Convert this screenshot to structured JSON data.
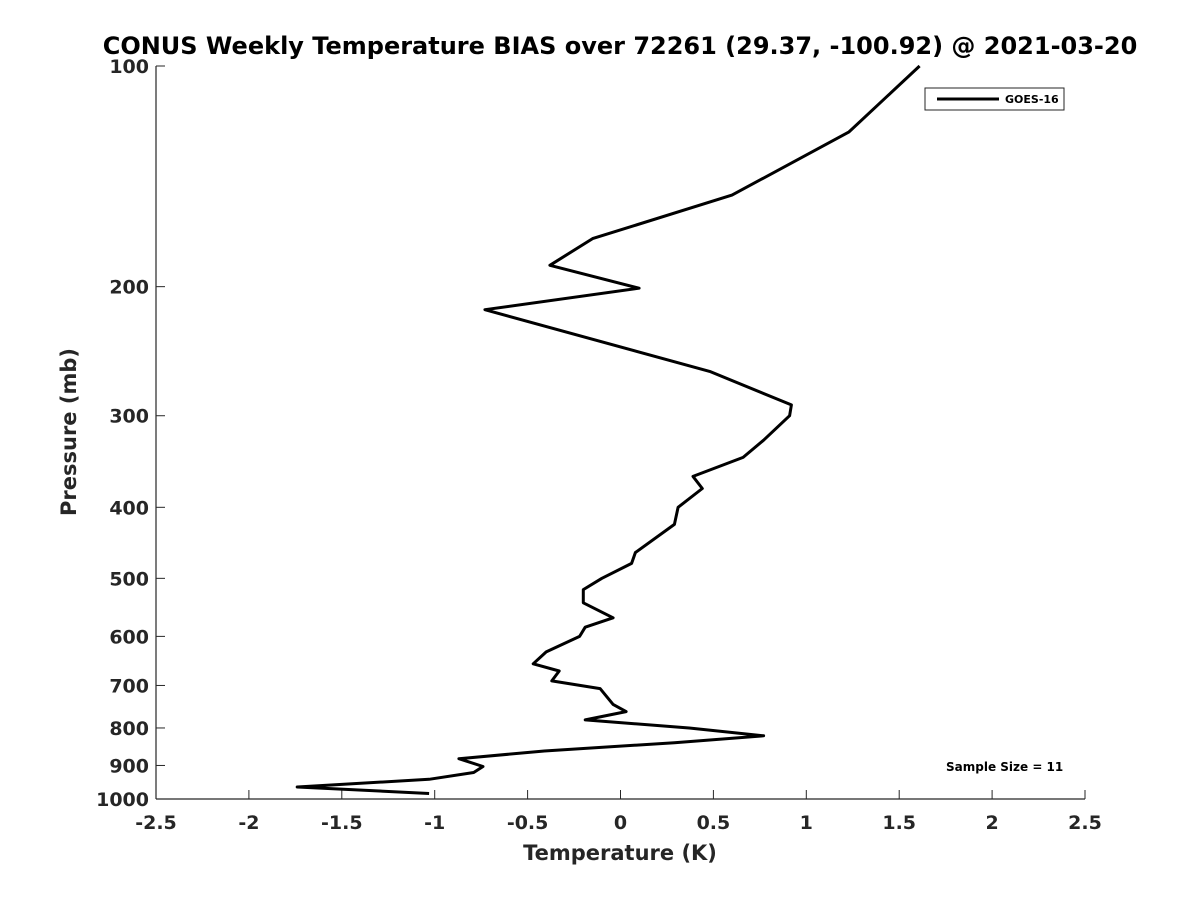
{
  "chart_data": {
    "type": "line",
    "title": "CONUS Weekly Temperature BIAS over 72261 (29.37, -100.92) @ 2021-03-20",
    "xlabel": "Temperature (K)",
    "ylabel": "Pressure (mb)",
    "xlim": [
      -2.5,
      2.5
    ],
    "ylim": [
      1000,
      100
    ],
    "yscale": "log",
    "y_reversed": true,
    "xticks": [
      -2.5,
      -2,
      -1.5,
      -1,
      -0.5,
      0,
      0.5,
      1,
      1.5,
      2,
      2.5
    ],
    "xtick_labels": [
      "-2.5",
      "-2",
      "-1.5",
      "-1",
      "-0.5",
      "0",
      "0.5",
      "1",
      "1.5",
      "2",
      "2.5"
    ],
    "yticks": [
      100,
      200,
      300,
      400,
      500,
      600,
      700,
      800,
      900,
      1000
    ],
    "ytick_labels": [
      "100",
      "200",
      "300",
      "400",
      "500",
      "600",
      "700",
      "800",
      "900",
      "1000"
    ],
    "grid": false,
    "legend": {
      "position": "top-right",
      "entries": [
        "GOES-16"
      ]
    },
    "annotation": "Sample Size = 11",
    "series": [
      {
        "name": "GOES-16",
        "color": "#000000",
        "points": [
          {
            "x": 1.61,
            "y": 100
          },
          {
            "x": 1.23,
            "y": 123
          },
          {
            "x": 0.6,
            "y": 150
          },
          {
            "x": -0.15,
            "y": 172
          },
          {
            "x": -0.38,
            "y": 187
          },
          {
            "x": 0.1,
            "y": 201
          },
          {
            "x": -0.73,
            "y": 215
          },
          {
            "x": 0.48,
            "y": 261
          },
          {
            "x": 0.92,
            "y": 290
          },
          {
            "x": 0.91,
            "y": 300
          },
          {
            "x": 0.77,
            "y": 324
          },
          {
            "x": 0.66,
            "y": 342
          },
          {
            "x": 0.39,
            "y": 363
          },
          {
            "x": 0.44,
            "y": 377
          },
          {
            "x": 0.31,
            "y": 400
          },
          {
            "x": 0.29,
            "y": 422
          },
          {
            "x": 0.08,
            "y": 461
          },
          {
            "x": 0.06,
            "y": 477
          },
          {
            "x": -0.1,
            "y": 500
          },
          {
            "x": -0.2,
            "y": 518
          },
          {
            "x": -0.2,
            "y": 540
          },
          {
            "x": -0.04,
            "y": 566
          },
          {
            "x": -0.19,
            "y": 583
          },
          {
            "x": -0.22,
            "y": 600
          },
          {
            "x": -0.4,
            "y": 630
          },
          {
            "x": -0.47,
            "y": 654
          },
          {
            "x": -0.33,
            "y": 669
          },
          {
            "x": -0.37,
            "y": 690
          },
          {
            "x": -0.11,
            "y": 707
          },
          {
            "x": -0.04,
            "y": 743
          },
          {
            "x": 0.03,
            "y": 760
          },
          {
            "x": -0.19,
            "y": 780
          },
          {
            "x": 0.37,
            "y": 800
          },
          {
            "x": 0.77,
            "y": 820
          },
          {
            "x": 0.29,
            "y": 838
          },
          {
            "x": -0.41,
            "y": 860
          },
          {
            "x": -0.87,
            "y": 881
          },
          {
            "x": -0.74,
            "y": 903
          },
          {
            "x": -0.79,
            "y": 920
          },
          {
            "x": -1.03,
            "y": 940
          },
          {
            "x": -1.74,
            "y": 963
          },
          {
            "x": -1.03,
            "y": 983
          }
        ]
      }
    ]
  }
}
